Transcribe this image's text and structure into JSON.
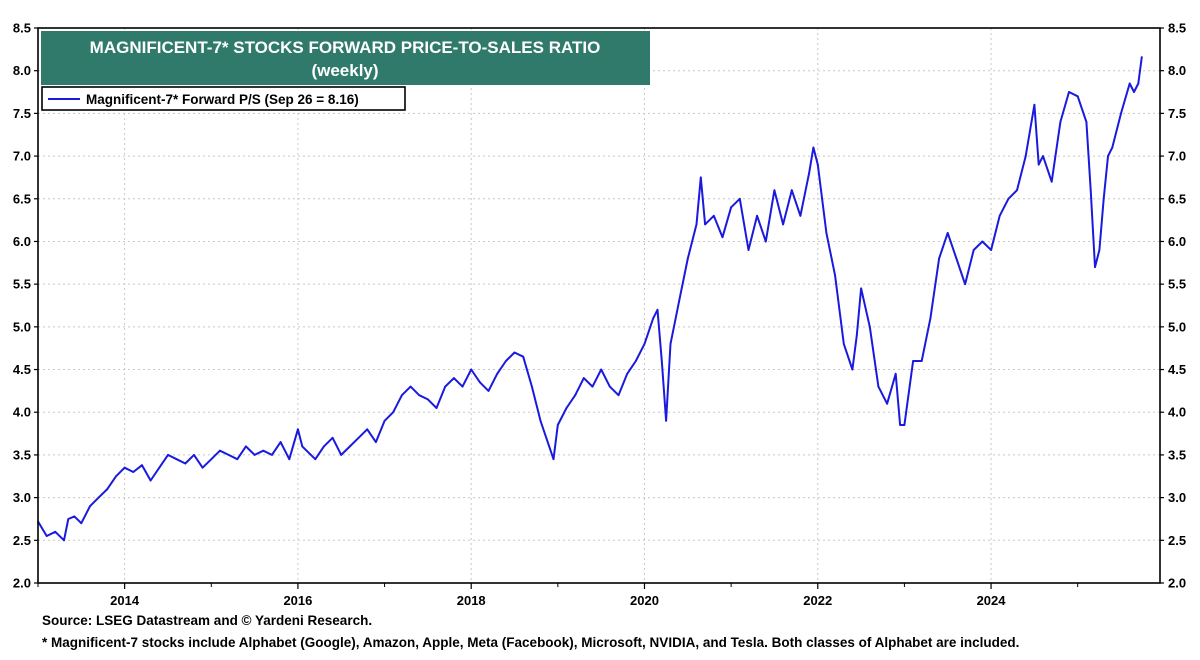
{
  "chart_data": {
    "type": "line",
    "title": "MAGNIFICENT-7* STOCKS FORWARD PRICE-TO-SALES RATIO",
    "subtitle": "(weekly)",
    "legend": [
      {
        "label": "Magnificent-7* Forward P/S (Sep 26 = 8.16)",
        "color": "#1a1adf"
      }
    ],
    "legend_placement": "top-left",
    "xlim": [
      2013.0,
      2025.95
    ],
    "ylim": [
      2.0,
      8.5
    ],
    "y_ticks": [
      "2.0",
      "2.5",
      "3.0",
      "3.5",
      "4.0",
      "4.5",
      "5.0",
      "5.5",
      "6.0",
      "6.5",
      "7.0",
      "7.5",
      "8.0",
      "8.5"
    ],
    "x_ticks": [
      "2014",
      "2016",
      "2018",
      "2020",
      "2022",
      "2024"
    ],
    "grid": true,
    "series": [
      {
        "name": "Magnificent-7* Forward P/S",
        "color": "#1a1adf",
        "x": [
          2013.0,
          2013.1,
          2013.2,
          2013.3,
          2013.35,
          2013.42,
          2013.5,
          2013.6,
          2013.7,
          2013.8,
          2013.9,
          2014.0,
          2014.1,
          2014.2,
          2014.3,
          2014.4,
          2014.5,
          2014.6,
          2014.7,
          2014.8,
          2014.9,
          2015.0,
          2015.1,
          2015.2,
          2015.3,
          2015.4,
          2015.5,
          2015.6,
          2015.7,
          2015.8,
          2015.9,
          2016.0,
          2016.05,
          2016.1,
          2016.2,
          2016.3,
          2016.4,
          2016.5,
          2016.6,
          2016.7,
          2016.8,
          2016.9,
          2017.0,
          2017.1,
          2017.2,
          2017.3,
          2017.4,
          2017.5,
          2017.6,
          2017.7,
          2017.8,
          2017.9,
          2018.0,
          2018.1,
          2018.2,
          2018.3,
          2018.4,
          2018.5,
          2018.6,
          2018.7,
          2018.8,
          2018.9,
          2018.95,
          2019.0,
          2019.1,
          2019.2,
          2019.3,
          2019.4,
          2019.5,
          2019.6,
          2019.7,
          2019.8,
          2019.9,
          2020.0,
          2020.1,
          2020.15,
          2020.2,
          2020.25,
          2020.3,
          2020.4,
          2020.5,
          2020.6,
          2020.65,
          2020.7,
          2020.8,
          2020.9,
          2021.0,
          2021.1,
          2021.2,
          2021.3,
          2021.4,
          2021.5,
          2021.6,
          2021.7,
          2021.8,
          2021.9,
          2021.95,
          2022.0,
          2022.1,
          2022.2,
          2022.3,
          2022.4,
          2022.45,
          2022.5,
          2022.6,
          2022.7,
          2022.8,
          2022.9,
          2022.95,
          2023.0,
          2023.1,
          2023.2,
          2023.3,
          2023.4,
          2023.5,
          2023.6,
          2023.7,
          2023.8,
          2023.9,
          2024.0,
          2024.1,
          2024.2,
          2024.3,
          2024.4,
          2024.5,
          2024.55,
          2024.6,
          2024.7,
          2024.8,
          2024.9,
          2025.0,
          2025.1,
          2025.15,
          2025.2,
          2025.25,
          2025.3,
          2025.35,
          2025.4,
          2025.5,
          2025.6,
          2025.65,
          2025.7,
          2025.74
        ],
        "values": [
          2.72,
          2.55,
          2.6,
          2.5,
          2.75,
          2.78,
          2.7,
          2.9,
          3.0,
          3.1,
          3.25,
          3.35,
          3.3,
          3.38,
          3.2,
          3.35,
          3.5,
          3.45,
          3.4,
          3.5,
          3.35,
          3.45,
          3.55,
          3.5,
          3.45,
          3.6,
          3.5,
          3.55,
          3.5,
          3.65,
          3.45,
          3.8,
          3.6,
          3.55,
          3.45,
          3.6,
          3.7,
          3.5,
          3.6,
          3.7,
          3.8,
          3.65,
          3.9,
          4.0,
          4.2,
          4.3,
          4.2,
          4.15,
          4.05,
          4.3,
          4.4,
          4.3,
          4.5,
          4.35,
          4.25,
          4.45,
          4.6,
          4.7,
          4.65,
          4.3,
          3.9,
          3.6,
          3.45,
          3.85,
          4.05,
          4.2,
          4.4,
          4.3,
          4.5,
          4.3,
          4.2,
          4.45,
          4.6,
          4.8,
          5.1,
          5.2,
          4.6,
          3.9,
          4.8,
          5.3,
          5.8,
          6.2,
          6.75,
          6.2,
          6.3,
          6.05,
          6.4,
          6.5,
          5.9,
          6.3,
          6.0,
          6.6,
          6.2,
          6.6,
          6.3,
          6.8,
          7.1,
          6.9,
          6.1,
          5.6,
          4.8,
          4.5,
          4.9,
          5.45,
          5.0,
          4.3,
          4.1,
          4.45,
          3.85,
          3.85,
          4.6,
          4.6,
          5.1,
          5.8,
          6.1,
          5.8,
          5.5,
          5.9,
          6.0,
          5.9,
          6.3,
          6.5,
          6.6,
          7.0,
          7.6,
          6.9,
          7.0,
          6.7,
          7.4,
          7.75,
          7.7,
          7.4,
          6.6,
          5.7,
          5.9,
          6.5,
          7.0,
          7.1,
          7.5,
          7.85,
          7.75,
          7.85,
          8.16
        ]
      }
    ]
  },
  "footnotes": {
    "source": "Source: LSEG Datastream and © Yardeni Research.",
    "note": "* Magnificent-7 stocks include Alphabet (Google), Amazon, Apple, Meta (Facebook), Microsoft, NVIDIA, and Tesla. Both classes of Alphabet are included."
  }
}
